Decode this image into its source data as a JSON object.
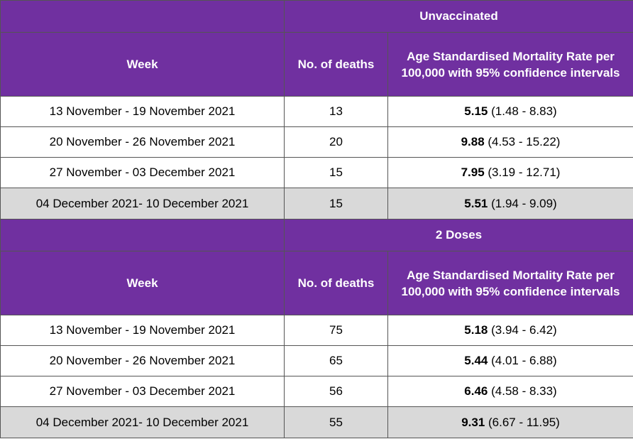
{
  "table": {
    "sections": [
      {
        "group": "Unvaccinated",
        "headers": [
          "Week",
          "No. of deaths",
          "Age Standardised Mortality Rate per 100,000 with 95% confidence intervals"
        ],
        "rows": [
          {
            "week": "13 November - 19 November 2021",
            "deaths": "13",
            "rate": "5.15",
            "ci": "(1.48 - 8.83)"
          },
          {
            "week": "20 November - 26 November 2021",
            "deaths": "20",
            "rate": "9.88",
            "ci": "(4.53 - 15.22)"
          },
          {
            "week": "27 November - 03 December 2021",
            "deaths": "15",
            "rate": "7.95",
            "ci": "(3.19 - 12.71)"
          },
          {
            "week": "04 December 2021- 10 December 2021",
            "deaths": "15",
            "rate": "5.51",
            "ci": "(1.94 - 9.09)"
          }
        ]
      },
      {
        "group": "2 Doses",
        "headers": [
          "Week",
          "No. of deaths",
          "Age Standardised Mortality Rate per 100,000 with 95% confidence intervals"
        ],
        "rows": [
          {
            "week": "13 November - 19 November 2021",
            "deaths": "75",
            "rate": "5.18",
            "ci": "(3.94 - 6.42)"
          },
          {
            "week": "20 November - 26 November 2021",
            "deaths": "65",
            "rate": "5.44",
            "ci": "(4.01 - 6.88)"
          },
          {
            "week": "27 November - 03 December 2021",
            "deaths": "56",
            "rate": "6.46",
            "ci": "(4.58 - 8.33)"
          },
          {
            "week": "04 December 2021- 10 December 2021",
            "deaths": "55",
            "rate": "9.31",
            "ci": "(6.67 - 11.95)"
          }
        ]
      }
    ]
  }
}
